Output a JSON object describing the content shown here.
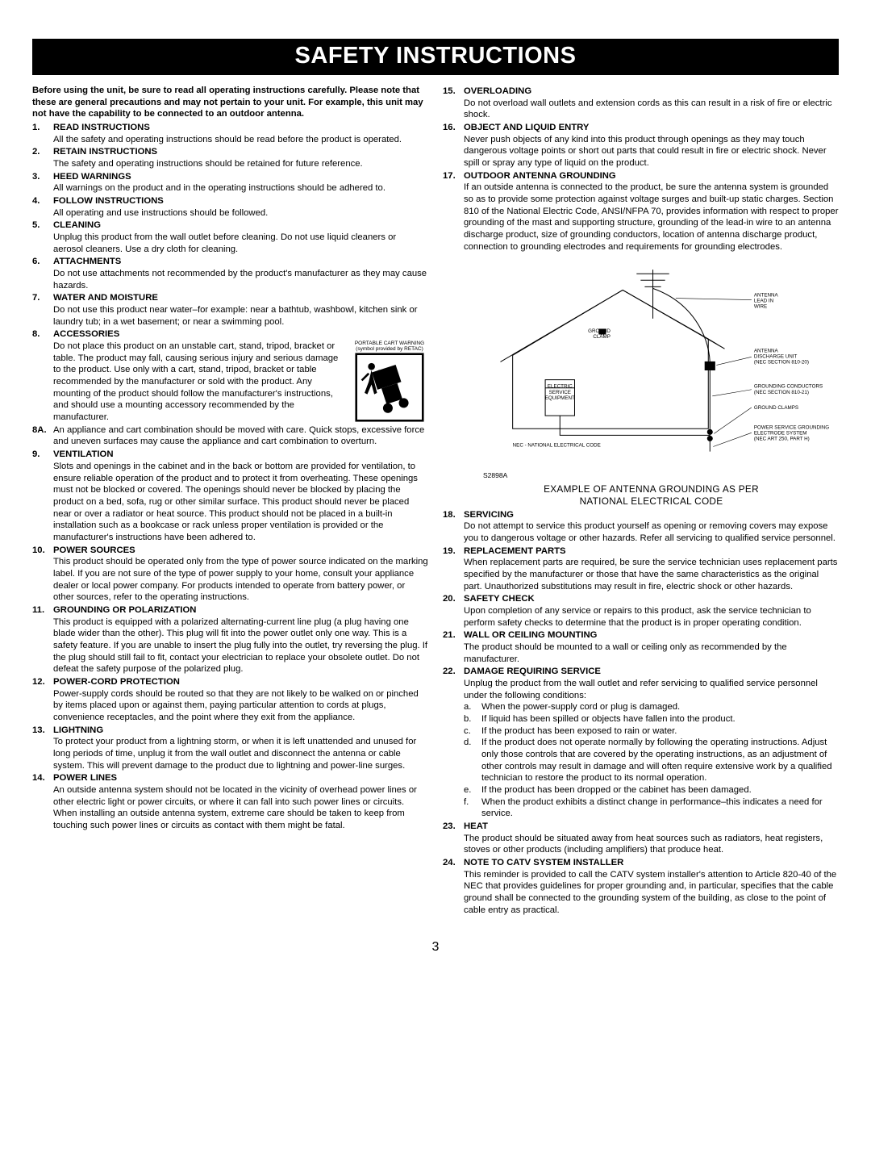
{
  "title": "SAFETY INSTRUCTIONS",
  "intro": "Before using the unit, be sure to read all operating instructions carefully. Please note that these are general precautions and may not pertain to your unit.  For example, this unit may not have the capability to be connected to an outdoor antenna.",
  "page_number": "3",
  "cart_caption_l1": "PORTABLE CART WARNING",
  "cart_caption_l2": "(symbol provided by RETAC)",
  "diagram_code": "S2898A",
  "diagram_caption_l1": "EXAMPLE OF ANTENNA GROUNDING AS PER",
  "diagram_caption_l2": "NATIONAL ELECTRICAL CODE",
  "diagram_labels": {
    "antenna_lead": "ANTENNA\nLEAD IN\nWIRE",
    "ground_clamp_top": "GROUND\nCLAMP",
    "antenna_discharge": "ANTENNA\nDISCHARGE UNIT\n(NEC SECTION 810-20)",
    "electric_service": "ELECTRIC\nSERVICE\nEQUIPMENT",
    "grounding_conductors": "GROUNDING CONDUCTORS\n(NEC SECTION 810-21)",
    "ground_clamps": "GROUND CLAMPS",
    "power_service": "POWER SERVICE GROUNDING\nELECTRODE SYSTEM\n(NEC ART 250, PART H)",
    "nec": "NEC - NATIONAL ELECTRICAL CODE"
  },
  "left": [
    {
      "n": "1.",
      "h": "READ INSTRUCTIONS",
      "t": "All the safety and operating instructions should be read before the product is operated."
    },
    {
      "n": "2.",
      "h": "RETAIN INSTRUCTIONS",
      "t": "The safety and operating instructions should be retained for future reference."
    },
    {
      "n": "3.",
      "h": "HEED WARNINGS",
      "t": "All warnings on the product and in the operating instructions should be adhered to."
    },
    {
      "n": "4.",
      "h": "FOLLOW INSTRUCTIONS",
      "t": "All operating and use instructions should be followed."
    },
    {
      "n": "5.",
      "h": "CLEANING",
      "t": "Unplug this product from the wall outlet before cleaning. Do not use liquid cleaners or aerosol cleaners. Use a dry cloth for cleaning."
    },
    {
      "n": "6.",
      "h": "ATTACHMENTS",
      "t": "Do not use attachments not recommended by the product's manufacturer as they may cause hazards."
    },
    {
      "n": "7.",
      "h": "WATER AND MOISTURE",
      "t": "Do not use this product near water–for example: near a bathtub, washbowl, kitchen sink or laundry tub; in a wet basement; or near a swimming pool."
    },
    {
      "n": "8.",
      "h": "ACCESSORIES",
      "t": "Do not place this product on an unstable cart, stand, tripod, bracket or table. The product may fall, causing serious injury and serious damage to the product. Use only with a cart, stand, tripod, bracket or table recommended by the manufacturer or sold with the product. Any mounting of the product should follow the manufacturer's instructions, and should use a mounting accessory recommended by the manufacturer.",
      "cart": true
    },
    {
      "n": "8A.",
      "h": "",
      "t": "An appliance and cart combination should be moved with care. Quick stops, excessive force and uneven surfaces may cause the appliance and cart combination to overturn."
    },
    {
      "n": "9.",
      "h": "VENTILATION",
      "t": "Slots and openings in the cabinet and in the back or bottom are provided for ventilation, to ensure reliable operation of the product and to protect it from overheating. These openings must not be blocked or covered. The openings should never be blocked by placing the product on a bed, sofa, rug or other similar surface. This product should never be placed near or over a radiator or heat source. This product should not be placed in a built-in installation such as a bookcase or rack unless proper ventilation is provided or the manufacturer's instructions have been adhered to."
    },
    {
      "n": "10.",
      "h": "POWER SOURCES",
      "t": "This product should be operated only from the type of power source indicated on the marking label. If you are not sure of the type of power supply to your home, consult your appliance dealer or local power company. For products intended to operate from battery power, or other sources, refer to the operating instructions."
    },
    {
      "n": "11.",
      "h": "GROUNDING OR POLARIZATION",
      "t": "This product is equipped with a polarized alternating-current line plug (a plug having one blade wider than the other). This plug will fit into the power outlet only one way. This is a safety feature. If you are unable to insert the plug fully into the outlet, try reversing the plug. If the plug should still fail to fit, contact your electrician to replace your obsolete outlet. Do not defeat the safety purpose of the polarized plug."
    },
    {
      "n": "12.",
      "h": "POWER-CORD PROTECTION",
      "t": "Power-supply cords should be routed so that they are not likely to be walked on or pinched by items placed upon or against them, paying particular attention to cords at plugs, convenience receptacles, and the point where they exit from the appliance."
    },
    {
      "n": "13.",
      "h": "LIGHTNING",
      "t": "To protect your product from a lightning storm, or when it is left unattended and unused for long periods of time, unplug it from the wall outlet and disconnect the antenna or cable system. This will prevent damage to the product due to lightning and power-line surges."
    },
    {
      "n": "14.",
      "h": "POWER LINES",
      "t": "An outside antenna system should not be located in the vicinity of overhead power lines or other electric light or power circuits, or where it can fall into such power lines or circuits. When installing an outside antenna system, extreme care should be taken to keep from touching such power lines or circuits as contact with them might be fatal."
    }
  ],
  "right": [
    {
      "n": "15.",
      "h": "OVERLOADING",
      "t": "Do not overload wall outlets and extension cords as this can result in a risk of fire or electric shock."
    },
    {
      "n": "16.",
      "h": "OBJECT AND LIQUID ENTRY",
      "t": "Never push objects of any kind into this product through openings as they may touch dangerous voltage points or short out parts that could result in fire or electric shock. Never spill or spray any type of liquid on the product."
    },
    {
      "n": "17.",
      "h": "OUTDOOR ANTENNA GROUNDING",
      "t": "If an outside antenna is connected to the product, be sure the antenna system is grounded so as to provide some protection against voltage surges and built-up static charges. Section 810 of the National Electric Code, ANSI/NFPA 70, provides information with respect to proper grounding of the mast and supporting structure, grounding of the lead-in wire to an antenna discharge product, size of grounding conductors, location of antenna discharge product, connection to grounding electrodes and requirements for grounding electrodes.",
      "diagram": true
    },
    {
      "n": "18.",
      "h": "SERVICING",
      "t": "Do not attempt to service this product yourself as opening or removing covers may expose you to dangerous voltage or other hazards. Refer all servicing to qualified service personnel."
    },
    {
      "n": "19.",
      "h": "REPLACEMENT PARTS",
      "t": "When replacement parts are required, be sure the service technician uses replacement parts specified by the manufacturer or those that have the same characteristics as the original part. Unauthorized substitutions may result in fire, electric shock or other hazards."
    },
    {
      "n": "20.",
      "h": "SAFETY CHECK",
      "t": "Upon completion of any service or repairs to this product, ask the service technician to perform safety checks to determine that the product is in proper operating condition."
    },
    {
      "n": "21.",
      "h": "WALL OR CEILING MOUNTING",
      "t": "The product should be mounted to a wall or ceiling only as recommended by the manufacturer."
    },
    {
      "n": "22.",
      "h": "DAMAGE REQUIRING SERVICE",
      "t": "Unplug the product from the wall outlet and refer servicing to qualified service personnel under the following conditions:",
      "subs": [
        {
          "l": "a.",
          "t": "When the power-supply cord or plug is damaged."
        },
        {
          "l": "b.",
          "t": "If liquid has been spilled or objects have fallen into the product."
        },
        {
          "l": "c.",
          "t": "If the product has been exposed to rain or water."
        },
        {
          "l": "d.",
          "t": "If the product does not operate normally by following the operating instructions. Adjust only those controls that are covered by the operating instructions, as an adjustment of other controls may result in damage and will often require extensive work by a qualified technician to restore the product to its normal operation."
        },
        {
          "l": "e.",
          "t": "If the product has been dropped or the cabinet has been damaged."
        },
        {
          "l": "f.",
          "t": "When the product exhibits a distinct change in performance–this indicates a need for service."
        }
      ]
    },
    {
      "n": "23.",
      "h": "HEAT",
      "t": "The product should be situated away from heat sources such as radiators, heat registers, stoves or other products (including amplifiers) that produce heat."
    },
    {
      "n": "24.",
      "h": "NOTE TO CATV SYSTEM INSTALLER",
      "t": "This reminder is provided to call the CATV system installer's attention to Article 820-40 of the NEC that provides guidelines for proper grounding and, in particular, specifies that the cable ground shall be connected to the grounding system of the building, as close to the point of cable entry as practical."
    }
  ]
}
